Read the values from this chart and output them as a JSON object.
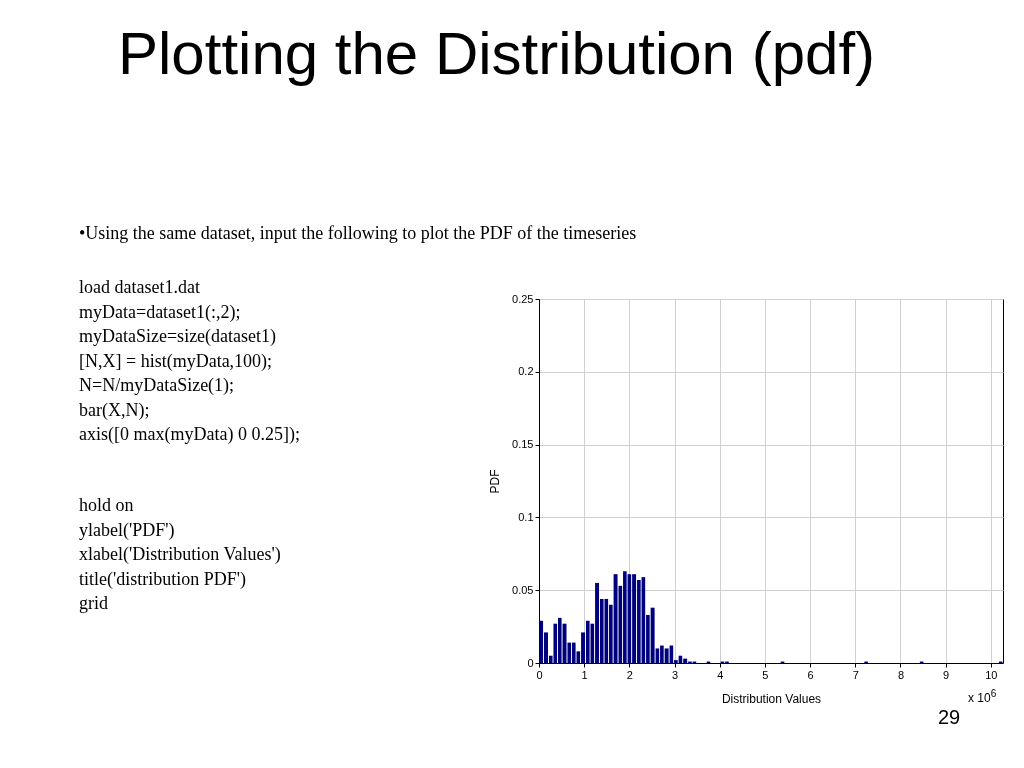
{
  "chart_data": {
    "type": "histogram",
    "title": "Plotting the Distribution (pdf)",
    "xlabel": "Distribution Values",
    "ylabel": "PDF",
    "color": "#00007f",
    "bins": [
      0,
      0.1,
      0.21,
      0.31,
      0.41,
      0.51,
      0.62,
      0.72,
      0.82,
      0.92,
      1.03,
      1.13,
      1.23,
      1.34,
      1.44,
      1.54,
      1.64,
      1.75,
      1.85,
      1.95,
      2.05,
      2.16,
      2.26,
      2.36,
      2.46,
      2.57,
      2.67,
      2.77,
      2.88,
      2.98,
      3.08,
      3.18,
      3.29,
      3.39,
      3.49,
      3.59,
      3.7,
      3.8,
      3.9,
      4.01,
      4.11,
      4.21,
      4.31,
      4.42,
      4.52,
      4.62,
      4.72,
      4.83,
      4.93,
      5.03,
      5.14,
      5.24,
      5.34,
      5.44,
      5.55,
      5.65,
      5.75,
      5.85,
      5.96,
      6.06,
      6.16,
      6.26,
      6.37,
      6.47,
      6.57,
      6.68,
      6.78,
      6.88,
      6.98,
      7.09,
      7.19,
      7.29,
      7.39,
      7.5,
      7.6,
      7.7,
      7.81,
      7.91,
      8.01,
      8.11,
      8.22,
      8.32,
      8.42,
      8.52,
      8.63,
      8.73,
      8.83,
      8.93,
      9.04,
      9.14,
      9.24,
      9.34,
      9.45,
      9.55,
      9.65,
      9.76,
      9.86,
      9.96,
      10.06,
      10.17,
      10.27
    ],
    "values": [
      0.029,
      0.021,
      0.005,
      0.027,
      0.031,
      0.027,
      0.014,
      0.014,
      0.008,
      0.021,
      0.029,
      0.027,
      0.055,
      0.044,
      0.044,
      0.04,
      0.061,
      0.053,
      0.063,
      0.061,
      0.061,
      0.057,
      0.059,
      0.033,
      0.038,
      0.01,
      0.012,
      0.01,
      0.012,
      0.002,
      0.005,
      0.003,
      0.001,
      0.001,
      0,
      0,
      0.001,
      0,
      0,
      0.001,
      0.001,
      0,
      0,
      0,
      0,
      0,
      0,
      0,
      0,
      0,
      0,
      0,
      0.001,
      0,
      0,
      0,
      0,
      0,
      0,
      0,
      0,
      0,
      0,
      0,
      0,
      0,
      0,
      0,
      0,
      0,
      0.001,
      0,
      0,
      0,
      0,
      0,
      0,
      0,
      0,
      0,
      0,
      0,
      0.001,
      0,
      0,
      0,
      0,
      0,
      0,
      0,
      0,
      0,
      0,
      0,
      0,
      0,
      0,
      0,
      0,
      0.001
    ],
    "xlim": [
      0,
      10.27
    ],
    "xticks": [
      0,
      1,
      2,
      3,
      4,
      5,
      6,
      7,
      8,
      9,
      10
    ],
    "ylim": [
      0,
      0.25
    ],
    "yticks": [
      0,
      0.05,
      0.1,
      0.15,
      0.2,
      0.25
    ],
    "grid": true,
    "annotations": [
      "•Using the same dataset, input the following to plot the PDF of the timeseries",
      "load dataset1.dat\nmyData=dataset1(:,2);\nmyDataSize=size(dataset1)\n[N,X] = hist(myData,100);\nN=N/myDataSize(1);\nbar(X,N);\naxis([0 max(myData) 0 0.25]);",
      "hold on\nylabel('PDF')\nxlabel('Distribution Values')\ntitle('distribution PDF')\ngrid",
      "x 10$^{6}$",
      "29"
    ]
  }
}
